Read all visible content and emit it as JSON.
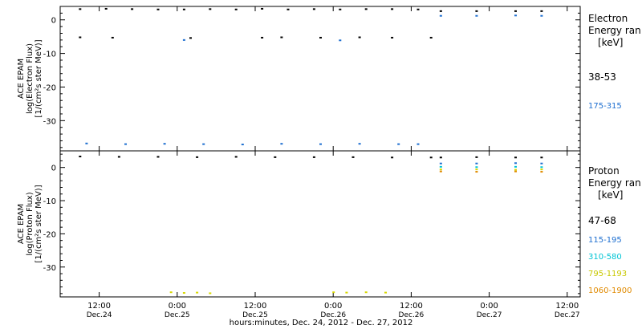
{
  "chart_data": [
    {
      "type": "scatter",
      "panel": "electron",
      "ylabel": [
        "ACE EPAM",
        "log(Electron Flux)",
        "[1/(cm²s ster MeV)]"
      ],
      "ylim": [
        -39,
        4
      ],
      "y_ticks": [
        0,
        -10,
        -20,
        -30
      ],
      "legend_title": [
        "Electron",
        "Energy ran",
        "[keV]"
      ],
      "series": [
        {
          "name": "38-53",
          "color": "#000000",
          "points": [
            {
              "x": "2012-12-24 09:00",
              "y": 3.2
            },
            {
              "x": "2012-12-24 13:00",
              "y": 3.3
            },
            {
              "x": "2012-12-24 17:00",
              "y": 3.2
            },
            {
              "x": "2012-12-24 21:00",
              "y": 3.1
            },
            {
              "x": "2012-12-25 01:00",
              "y": 3.1
            },
            {
              "x": "2012-12-25 05:00",
              "y": 3.2
            },
            {
              "x": "2012-12-25 09:00",
              "y": 3.1
            },
            {
              "x": "2012-12-25 13:00",
              "y": 3.3
            },
            {
              "x": "2012-12-25 17:00",
              "y": 3.1
            },
            {
              "x": "2012-12-25 21:00",
              "y": 3.2
            },
            {
              "x": "2012-12-26 01:00",
              "y": 3.1
            },
            {
              "x": "2012-12-26 05:00",
              "y": 3.2
            },
            {
              "x": "2012-12-26 09:00",
              "y": 3.2
            },
            {
              "x": "2012-12-26 13:00",
              "y": 3.1
            },
            {
              "x": "2012-12-26 16:30",
              "y": 2.6
            },
            {
              "x": "2012-12-26 22:00",
              "y": 2.6
            },
            {
              "x": "2012-12-27 04:00",
              "y": 2.6
            },
            {
              "x": "2012-12-27 08:00",
              "y": 2.6
            },
            {
              "x": "2012-12-24 09:00",
              "y": -5.2
            },
            {
              "x": "2012-12-24 14:00",
              "y": -5.3
            },
            {
              "x": "2012-12-25 02:00",
              "y": -5.4
            },
            {
              "x": "2012-12-25 13:00",
              "y": -5.3
            },
            {
              "x": "2012-12-25 16:00",
              "y": -5.2
            },
            {
              "x": "2012-12-25 22:00",
              "y": -5.3
            },
            {
              "x": "2012-12-26 04:00",
              "y": -5.2
            },
            {
              "x": "2012-12-26 09:00",
              "y": -5.3
            },
            {
              "x": "2012-12-26 15:00",
              "y": -5.3
            }
          ]
        },
        {
          "name": "175-315",
          "color": "#1e6fd0",
          "points": [
            {
              "x": "2012-12-24 10:00",
              "y": -36.8
            },
            {
              "x": "2012-12-24 16:00",
              "y": -37.0
            },
            {
              "x": "2012-12-24 22:00",
              "y": -36.9
            },
            {
              "x": "2012-12-25 04:00",
              "y": -37.0
            },
            {
              "x": "2012-12-25 10:00",
              "y": -37.1
            },
            {
              "x": "2012-12-25 16:00",
              "y": -36.9
            },
            {
              "x": "2012-12-25 22:00",
              "y": -37.0
            },
            {
              "x": "2012-12-26 04:00",
              "y": -36.9
            },
            {
              "x": "2012-12-26 10:00",
              "y": -37.0
            },
            {
              "x": "2012-12-26 13:00",
              "y": -37.0
            },
            {
              "x": "2012-12-25 01:00",
              "y": -6.0
            },
            {
              "x": "2012-12-26 01:00",
              "y": -6.1
            },
            {
              "x": "2012-12-26 16:30",
              "y": 1.2
            },
            {
              "x": "2012-12-26 22:00",
              "y": 1.2
            },
            {
              "x": "2012-12-27 04:00",
              "y": 1.3
            },
            {
              "x": "2012-12-27 08:00",
              "y": 1.2
            }
          ]
        }
      ]
    },
    {
      "type": "scatter",
      "panel": "proton",
      "ylabel": [
        "ACE EPAM",
        "log(Proton Flux)",
        "[1/(cm²s ster MeV)]"
      ],
      "ylim": [
        -39,
        5
      ],
      "y_ticks": [
        0,
        -10,
        -20,
        -30
      ],
      "legend_title": [
        "Proton",
        "Energy ran",
        "[keV]"
      ],
      "series": [
        {
          "name": "47-68",
          "color": "#000000",
          "points": [
            {
              "x": "2012-12-24 09:00",
              "y": 3.3
            },
            {
              "x": "2012-12-24 15:00",
              "y": 3.2
            },
            {
              "x": "2012-12-24 21:00",
              "y": 3.2
            },
            {
              "x": "2012-12-25 03:00",
              "y": 3.1
            },
            {
              "x": "2012-12-25 09:00",
              "y": 3.2
            },
            {
              "x": "2012-12-25 15:00",
              "y": 3.1
            },
            {
              "x": "2012-12-25 21:00",
              "y": 3.1
            },
            {
              "x": "2012-12-26 03:00",
              "y": 3.1
            },
            {
              "x": "2012-12-26 09:00",
              "y": 3.0
            },
            {
              "x": "2012-12-26 15:00",
              "y": 3.0
            },
            {
              "x": "2012-12-26 16:30",
              "y": 3.0
            },
            {
              "x": "2012-12-26 22:00",
              "y": 3.1
            },
            {
              "x": "2012-12-27 04:00",
              "y": 3.0
            },
            {
              "x": "2012-12-27 08:00",
              "y": 3.0
            }
          ]
        },
        {
          "name": "115-195",
          "color": "#1e6fd0",
          "points": [
            {
              "x": "2012-12-26 16:30",
              "y": 1.2
            },
            {
              "x": "2012-12-26 22:00",
              "y": 1.2
            },
            {
              "x": "2012-12-27 04:00",
              "y": 1.3
            },
            {
              "x": "2012-12-27 08:00",
              "y": 1.2
            }
          ]
        },
        {
          "name": "310-580",
          "color": "#00c4d4",
          "points": [
            {
              "x": "2012-12-26 16:30",
              "y": 0.2
            },
            {
              "x": "2012-12-26 22:00",
              "y": 0.1
            },
            {
              "x": "2012-12-27 04:00",
              "y": 0.2
            },
            {
              "x": "2012-12-27 08:00",
              "y": 0.1
            }
          ]
        },
        {
          "name": "795-1193",
          "color": "#d8d800",
          "points": [
            {
              "x": "2012-12-24 23:00",
              "y": -37.6
            },
            {
              "x": "2012-12-25 01:00",
              "y": -37.8
            },
            {
              "x": "2012-12-25 03:00",
              "y": -37.7
            },
            {
              "x": "2012-12-25 05:00",
              "y": -37.9
            },
            {
              "x": "2012-12-26 00:00",
              "y": -37.6
            },
            {
              "x": "2012-12-26 02:00",
              "y": -37.7
            },
            {
              "x": "2012-12-26 05:00",
              "y": -37.6
            },
            {
              "x": "2012-12-26 08:00",
              "y": -37.7
            },
            {
              "x": "2012-12-26 16:30",
              "y": -0.6
            },
            {
              "x": "2012-12-26 22:00",
              "y": -0.6
            },
            {
              "x": "2012-12-27 04:00",
              "y": -0.7
            },
            {
              "x": "2012-12-27 08:00",
              "y": -0.6
            }
          ]
        },
        {
          "name": "1060-1900",
          "color": "#e08a00",
          "points": [
            {
              "x": "2012-12-26 16:30",
              "y": -1.2
            },
            {
              "x": "2012-12-26 22:00",
              "y": -1.3
            },
            {
              "x": "2012-12-27 04:00",
              "y": -1.2
            },
            {
              "x": "2012-12-27 08:00",
              "y": -1.3
            }
          ]
        }
      ]
    }
  ],
  "x_axis": {
    "xlabel": "hours:minutes, Dec. 24, 2012 - Dec. 27, 2012",
    "ticks": [
      {
        "x": "2012-12-24 12:00",
        "time": "12:00",
        "day": "Dec.24"
      },
      {
        "x": "2012-12-25 00:00",
        "time": "0:00",
        "day": "Dec.25"
      },
      {
        "x": "2012-12-25 12:00",
        "time": "12:00",
        "day": "Dec.25"
      },
      {
        "x": "2012-12-26 00:00",
        "time": "0:00",
        "day": "Dec.26"
      },
      {
        "x": "2012-12-26 12:00",
        "time": "12:00",
        "day": "Dec.26"
      },
      {
        "x": "2012-12-27 00:00",
        "time": "0:00",
        "day": "Dec.27"
      },
      {
        "x": "2012-12-27 12:00",
        "time": "12:00",
        "day": "Dec.27"
      }
    ],
    "xlim": [
      "2012-12-24 06:00",
      "2012-12-27 14:00"
    ]
  }
}
